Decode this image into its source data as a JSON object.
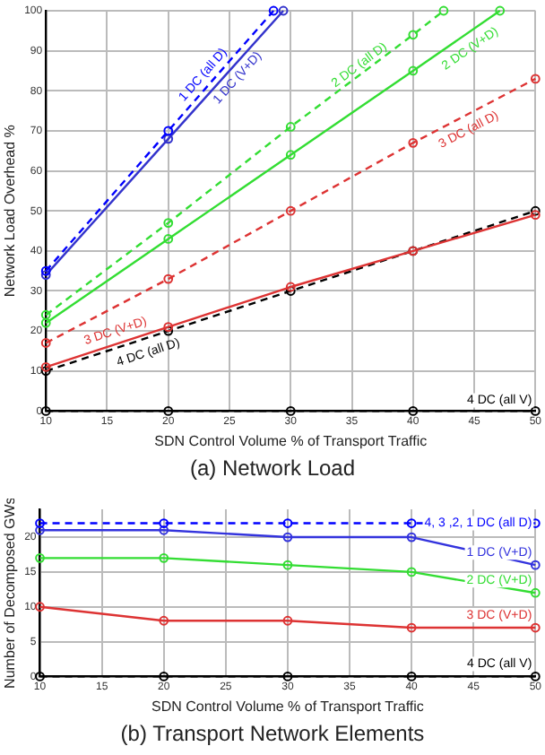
{
  "chart_data": [
    {
      "type": "line",
      "title": "(a) Network Load",
      "xlabel": "SDN Control Volume % of Transport Traffic",
      "ylabel": "Network Load Overhead %",
      "x": [
        10,
        20,
        30,
        40,
        50
      ],
      "xlim": [
        10,
        50
      ],
      "xticks": [
        10,
        15,
        20,
        25,
        30,
        35,
        40,
        45,
        50
      ],
      "ylim": [
        0,
        100
      ],
      "yticks": [
        0,
        10,
        20,
        30,
        40,
        50,
        60,
        70,
        80,
        90,
        100
      ],
      "grid": true,
      "legend": false,
      "marker": "circle",
      "series": [
        {
          "name": "1 DC (all D)",
          "color": "#0000ff",
          "line_style": "dashed",
          "x": [
            10,
            20,
            28.6
          ],
          "values": [
            35,
            70,
            100
          ]
        },
        {
          "name": "1 DC (V+D)",
          "color": "#3333cc",
          "line_style": "solid",
          "x": [
            10,
            20,
            29.4
          ],
          "values": [
            34,
            68,
            100
          ]
        },
        {
          "name": "2 DC (all D)",
          "color": "#33dd33",
          "line_style": "dashed",
          "x": [
            10,
            20,
            30,
            40,
            42.5
          ],
          "values": [
            24,
            47,
            71,
            94,
            100
          ]
        },
        {
          "name": "2 DC (V+D)",
          "color": "#33dd33",
          "line_style": "solid",
          "x": [
            10,
            20,
            30,
            40,
            47.1
          ],
          "values": [
            22,
            43,
            64,
            85,
            100
          ]
        },
        {
          "name": "3 DC (all D)",
          "color": "#dd3333",
          "line_style": "dashed",
          "values": [
            17,
            33,
            50,
            67,
            83
          ]
        },
        {
          "name": "3 DC (V+D)",
          "color": "#dd3333",
          "line_style": "solid",
          "values": [
            11,
            21,
            31,
            40,
            49
          ]
        },
        {
          "name": "4 DC (all D)",
          "color": "#000000",
          "line_style": "dashed",
          "values": [
            10,
            20,
            30,
            40,
            50
          ]
        },
        {
          "name": "4 DC (all V)",
          "color": "#000000",
          "line_style": "dashed",
          "values": [
            0,
            0,
            0,
            0,
            0
          ]
        }
      ]
    },
    {
      "type": "line",
      "title": "(b) Transport Network Elements",
      "xlabel": "SDN Control Volume % of Transport Traffic",
      "ylabel": "Number of Decomposed GWs",
      "x": [
        10,
        20,
        30,
        40,
        50
      ],
      "xlim": [
        10,
        50
      ],
      "xticks": [
        10,
        15,
        20,
        25,
        30,
        35,
        40,
        45,
        50
      ],
      "ylim": [
        0,
        24
      ],
      "yticks": [
        0,
        5,
        10,
        15,
        20
      ],
      "grid": true,
      "legend": false,
      "marker": "circle",
      "series": [
        {
          "name": "4, 3 ,2, 1 DC (all D)",
          "color": "#0000ff",
          "line_style": "dashed",
          "values": [
            22,
            22,
            22,
            22,
            22
          ]
        },
        {
          "name": "1 DC (V+D)",
          "color": "#3333dd",
          "line_style": "solid",
          "values": [
            21,
            21,
            20,
            20,
            16
          ]
        },
        {
          "name": "2 DC (V+D)",
          "color": "#33dd33",
          "line_style": "solid",
          "values": [
            17,
            17,
            16,
            15,
            12
          ]
        },
        {
          "name": "3 DC (V+D)",
          "color": "#dd3333",
          "line_style": "solid",
          "values": [
            10,
            8,
            8,
            7,
            7
          ]
        },
        {
          "name": "4 DC (all V)",
          "color": "#000000",
          "line_style": "dashed",
          "values": [
            0,
            0,
            0,
            0,
            0
          ]
        }
      ]
    }
  ]
}
